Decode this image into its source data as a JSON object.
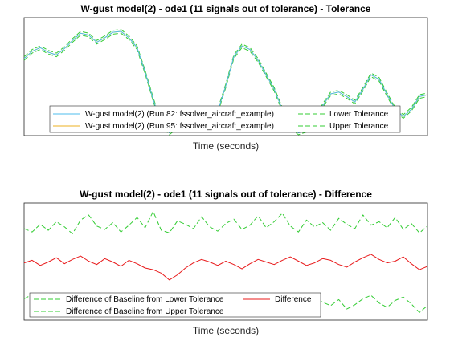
{
  "colors": {
    "run82": "#4DBEEE",
    "run95": "#EDB120",
    "tolerance": "#33CC33",
    "difference": "#E8191A"
  },
  "chart_data": [
    {
      "type": "line",
      "title": "W-gust model(2) - ode1 (11 signals out of tolerance) - Tolerance",
      "xlabel": "Time (seconds)",
      "ylabel": "",
      "grid": false,
      "legend_position": "bottom",
      "legend": [
        "W-gust model(2) (Run 82: fssolver_aircraft_example)",
        "W-gust model(2) (Run 95: fssolver_aircraft_example)",
        "Lower Tolerance",
        "Upper Tolerance"
      ],
      "x": [
        0,
        2,
        4,
        6,
        8,
        10,
        12,
        14,
        16,
        18,
        20,
        22,
        24,
        26,
        28,
        30,
        32,
        34,
        36,
        38,
        40,
        42,
        44,
        46,
        48,
        50,
        52,
        54,
        56,
        58,
        60,
        62,
        64,
        66,
        68,
        70,
        72,
        74,
        76,
        78,
        80,
        82,
        84,
        86,
        88,
        90,
        92,
        94,
        96,
        98,
        100
      ],
      "series": [
        {
          "name": "W-gust model(2) (Run 82: fssolver_aircraft_example)",
          "values": [
            0.7,
            0.78,
            0.82,
            0.77,
            0.74,
            0.81,
            0.9,
            0.98,
            0.96,
            0.88,
            0.93,
            0.99,
            1.0,
            0.93,
            0.82,
            0.55,
            0.25,
            -0.02,
            -0.12,
            -0.05,
            0.08,
            0.1,
            0.0,
            -0.05,
            0.12,
            0.4,
            0.72,
            0.84,
            0.8,
            0.68,
            0.52,
            0.36,
            0.14,
            -0.05,
            -0.12,
            -0.09,
            0.0,
            0.18,
            0.31,
            0.33,
            0.28,
            0.22,
            0.36,
            0.52,
            0.47,
            0.3,
            0.14,
            0.06,
            0.14,
            0.28,
            0.3
          ]
        },
        {
          "name": "W-gust model(2) (Run 95: fssolver_aircraft_example)",
          "values": [
            0.7,
            0.78,
            0.82,
            0.77,
            0.74,
            0.81,
            0.9,
            0.98,
            0.96,
            0.88,
            0.93,
            0.99,
            1.0,
            0.93,
            0.82,
            0.55,
            0.25,
            -0.02,
            -0.12,
            -0.05,
            0.08,
            0.1,
            0.0,
            -0.05,
            0.12,
            0.4,
            0.72,
            0.84,
            0.8,
            0.68,
            0.52,
            0.36,
            0.14,
            -0.05,
            -0.12,
            -0.09,
            0.0,
            0.18,
            0.31,
            0.33,
            0.28,
            0.22,
            0.36,
            0.52,
            0.47,
            0.3,
            0.14,
            0.06,
            0.14,
            0.28,
            0.3
          ]
        },
        {
          "name": "Lower Tolerance",
          "values": [
            0.68,
            0.76,
            0.8,
            0.75,
            0.72,
            0.79,
            0.88,
            0.96,
            0.94,
            0.86,
            0.91,
            0.97,
            0.98,
            0.91,
            0.8,
            0.53,
            0.23,
            -0.04,
            -0.14,
            -0.07,
            0.06,
            0.08,
            -0.02,
            -0.07,
            0.1,
            0.38,
            0.7,
            0.82,
            0.78,
            0.66,
            0.5,
            0.34,
            0.12,
            -0.07,
            -0.14,
            -0.11,
            -0.02,
            0.16,
            0.29,
            0.31,
            0.26,
            0.2,
            0.34,
            0.5,
            0.45,
            0.28,
            0.12,
            0.04,
            0.12,
            0.26,
            0.28
          ]
        },
        {
          "name": "Upper Tolerance",
          "values": [
            0.72,
            0.8,
            0.84,
            0.79,
            0.76,
            0.83,
            0.92,
            1.0,
            0.98,
            0.9,
            0.95,
            1.01,
            1.02,
            0.95,
            0.84,
            0.57,
            0.27,
            0.0,
            -0.1,
            -0.03,
            0.1,
            0.12,
            0.02,
            -0.03,
            0.14,
            0.42,
            0.74,
            0.86,
            0.82,
            0.7,
            0.54,
            0.38,
            0.16,
            -0.03,
            -0.1,
            -0.07,
            0.02,
            0.2,
            0.33,
            0.35,
            0.3,
            0.24,
            0.38,
            0.54,
            0.49,
            0.32,
            0.16,
            0.08,
            0.16,
            0.3,
            0.32
          ]
        }
      ],
      "ylim": [
        -0.15,
        1.15
      ]
    },
    {
      "type": "line",
      "title": "W-gust model(2) - ode1 (11 signals out of tolerance) - Difference",
      "xlabel": "Time (seconds)",
      "ylabel": "",
      "grid": false,
      "legend_position": "bottom",
      "legend": [
        "Difference of Baseline from Lower Tolerance",
        "Difference",
        "Difference of Baseline from Upper Tolerance"
      ],
      "x": [
        0,
        2,
        4,
        6,
        8,
        10,
        12,
        14,
        16,
        18,
        20,
        22,
        24,
        26,
        28,
        30,
        32,
        34,
        36,
        38,
        40,
        42,
        44,
        46,
        48,
        50,
        52,
        54,
        56,
        58,
        60,
        62,
        64,
        66,
        68,
        70,
        72,
        74,
        76,
        78,
        80,
        82,
        84,
        86,
        88,
        90,
        92,
        94,
        96,
        98,
        100
      ],
      "series": [
        {
          "name": "Difference of Baseline from Lower Tolerance",
          "values": [
            0.42,
            0.38,
            0.47,
            0.4,
            0.5,
            0.44,
            0.36,
            0.52,
            0.58,
            0.45,
            0.41,
            0.49,
            0.38,
            0.46,
            0.55,
            0.43,
            0.62,
            0.4,
            0.37,
            0.51,
            0.47,
            0.42,
            0.56,
            0.44,
            0.39,
            0.48,
            0.53,
            0.41,
            0.46,
            0.57,
            0.43,
            0.5,
            0.6,
            0.45,
            0.38,
            0.52,
            0.44,
            0.49,
            0.4,
            0.54,
            0.47,
            0.42,
            0.58,
            0.46,
            0.5,
            0.43,
            0.55,
            0.41,
            0.48,
            0.37,
            0.45
          ]
        },
        {
          "name": "Difference",
          "values": [
            0.02,
            0.05,
            -0.01,
            0.03,
            0.08,
            0.01,
            0.06,
            0.1,
            0.04,
            0.0,
            0.07,
            0.03,
            -0.02,
            0.05,
            0.01,
            -0.04,
            -0.06,
            -0.1,
            -0.18,
            -0.12,
            -0.04,
            0.02,
            0.06,
            0.03,
            -0.01,
            0.04,
            0.0,
            -0.05,
            0.01,
            0.06,
            0.03,
            0.0,
            0.05,
            0.09,
            0.04,
            -0.01,
            0.02,
            0.07,
            0.05,
            0.0,
            -0.03,
            0.03,
            0.08,
            0.12,
            0.06,
            0.02,
            0.04,
            0.09,
            0.01,
            -0.06,
            -0.02
          ]
        },
        {
          "name": "Difference of Baseline from Upper Tolerance",
          "values": [
            -0.4,
            -0.35,
            -0.46,
            -0.38,
            -0.44,
            -0.5,
            -0.37,
            -0.42,
            -0.48,
            -0.36,
            -0.45,
            -0.4,
            -0.52,
            -0.39,
            -0.43,
            -0.47,
            -0.55,
            -0.49,
            -0.58,
            -0.5,
            -0.41,
            -0.46,
            -0.37,
            -0.44,
            -0.5,
            -0.42,
            -0.38,
            -0.47,
            -0.53,
            -0.4,
            -0.45,
            -0.49,
            -0.36,
            -0.43,
            -0.51,
            -0.46,
            -0.39,
            -0.44,
            -0.48,
            -0.41,
            -0.52,
            -0.47,
            -0.4,
            -0.36,
            -0.45,
            -0.5,
            -0.42,
            -0.38,
            -0.46,
            -0.56,
            -0.48
          ]
        }
      ],
      "ylim": [
        -0.65,
        0.72
      ]
    }
  ]
}
